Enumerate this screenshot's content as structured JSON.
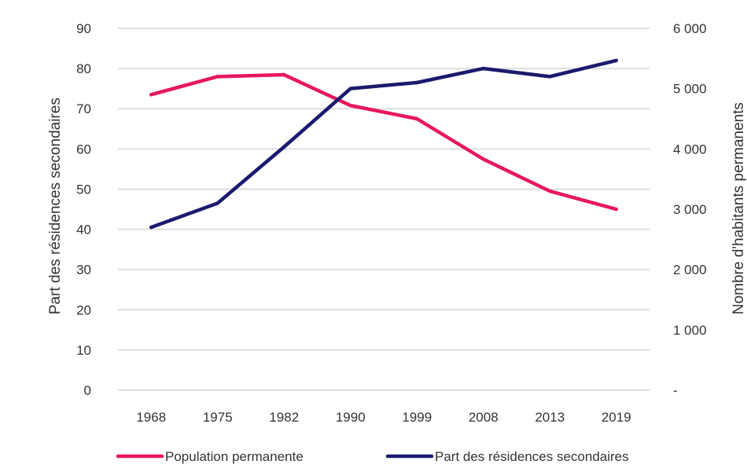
{
  "chart_data": {
    "type": "line",
    "categories": [
      "1968",
      "1975",
      "1982",
      "1990",
      "1999",
      "2008",
      "2013",
      "2019"
    ],
    "series": [
      {
        "name": "Population permanente",
        "axis": "right",
        "color": "#e8175d",
        "values": [
          4900,
          5200,
          5230,
          4720,
          4500,
          3830,
          3300,
          3000
        ]
      },
      {
        "name": "Part des résidences secondaires",
        "axis": "left",
        "color": "#1a1a6e",
        "values": [
          40.5,
          46.5,
          60.5,
          75,
          76.5,
          80,
          78,
          82
        ]
      }
    ],
    "ylabel_left": "Part des résidences secondaires",
    "ylabel_right": "Nombre d'habitants permanents",
    "ylim_left": [
      0,
      90
    ],
    "ylim_right": [
      0,
      6000
    ],
    "yticks_left": [
      "0",
      "10",
      "20",
      "30",
      "40",
      "50",
      "60",
      "70",
      "80",
      "90"
    ],
    "yticks_right": [
      "-",
      "1 000",
      "2 000",
      "3 000",
      "4 000",
      "5 000",
      "6 000"
    ],
    "grid": true,
    "legend_position": "bottom"
  }
}
